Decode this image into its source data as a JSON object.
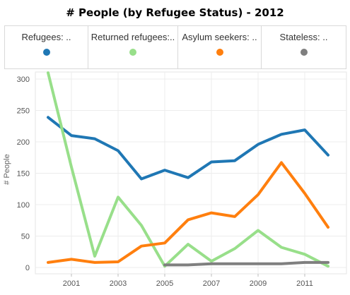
{
  "chart_data": {
    "type": "line",
    "title": "# People (by Refugee Status) - 2012",
    "ylabel": "# People",
    "xlabel": "",
    "x": [
      2000,
      2001,
      2002,
      2003,
      2004,
      2005,
      2006,
      2007,
      2008,
      2009,
      2010,
      2011,
      2012
    ],
    "xticks": [
      "2001",
      "2003",
      "2005",
      "2007",
      "2009",
      "2011"
    ],
    "yticks": [
      "0",
      "50",
      "100",
      "150",
      "200",
      "250",
      "300"
    ],
    "ylim": [
      0,
      320
    ],
    "grid": true,
    "legend_position": "top",
    "series": [
      {
        "name": "Refugees:  ..",
        "color": "#1f77b4",
        "values": [
          239,
          210,
          205,
          186,
          141,
          155,
          143,
          168,
          170,
          196,
          212,
          219,
          179
        ]
      },
      {
        "name": "Returned refugees:..",
        "color": "#98df8a",
        "values": [
          310,
          160,
          18,
          112,
          67,
          2,
          37,
          10,
          30,
          59,
          32,
          21,
          2
        ]
      },
      {
        "name": "Asylum seekers:  ..",
        "color": "#ff7f0e",
        "values": [
          8,
          13,
          8,
          9,
          34,
          39,
          76,
          87,
          81,
          116,
          167,
          118,
          64
        ]
      },
      {
        "name": "Stateless:  ..",
        "color": "#7f7f7f",
        "values": [
          null,
          null,
          null,
          null,
          null,
          4,
          4,
          6,
          6,
          6,
          6,
          8,
          8
        ]
      }
    ]
  }
}
